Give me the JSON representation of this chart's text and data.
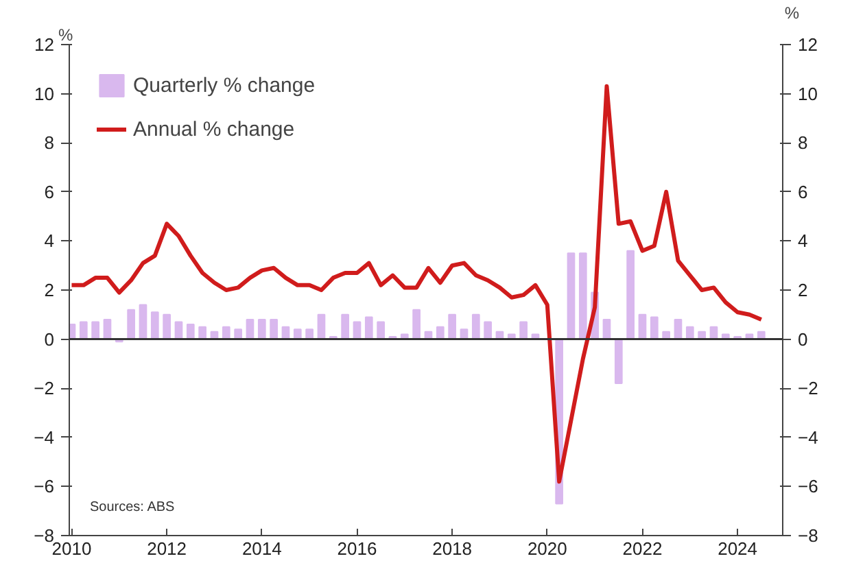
{
  "chart_data": {
    "type": "bar",
    "x": [
      2010,
      2010.25,
      2010.5,
      2010.75,
      2011,
      2011.25,
      2011.5,
      2011.75,
      2012,
      2012.25,
      2012.5,
      2012.75,
      2013,
      2013.25,
      2013.5,
      2013.75,
      2014,
      2014.25,
      2014.5,
      2014.75,
      2015,
      2015.25,
      2015.5,
      2015.75,
      2016,
      2016.25,
      2016.5,
      2016.75,
      2017,
      2017.25,
      2017.5,
      2017.75,
      2018,
      2018.25,
      2018.5,
      2018.75,
      2019,
      2019.25,
      2019.5,
      2019.75,
      2020,
      2020.25,
      2020.5,
      2020.75,
      2021,
      2021.25,
      2021.5,
      2021.75,
      2022,
      2022.25,
      2022.5,
      2022.75,
      2023,
      2023.25,
      2023.5,
      2023.75,
      2024,
      2024.25,
      2024.5
    ],
    "series": [
      {
        "name": "Quarterly % change",
        "color": "#d9b8ee",
        "values": [
          0.6,
          0.7,
          0.7,
          0.8,
          -0.1,
          1.2,
          1.4,
          1.1,
          1.0,
          0.7,
          0.6,
          0.5,
          0.3,
          0.5,
          0.4,
          0.8,
          0.8,
          0.8,
          0.5,
          0.4,
          0.4,
          1.0,
          0.1,
          1.0,
          0.7,
          0.9,
          0.7,
          0.1,
          0.2,
          1.2,
          0.3,
          0.5,
          1.0,
          0.4,
          1.0,
          0.7,
          0.3,
          0.2,
          0.7,
          0.2,
          null,
          -6.7,
          3.5,
          3.5,
          1.9,
          0.8,
          -1.8,
          3.6,
          1.0,
          0.9,
          0.3,
          0.8,
          0.5,
          0.3,
          0.5,
          0.2,
          0.1,
          0.2,
          0.3
        ]
      },
      {
        "name": "Annual % change",
        "type": "line",
        "color": "#d01c1c",
        "values": [
          2.2,
          2.2,
          2.5,
          2.5,
          1.9,
          2.4,
          3.1,
          3.4,
          4.7,
          4.2,
          3.4,
          2.7,
          2.3,
          2.0,
          2.1,
          2.5,
          2.8,
          2.9,
          2.5,
          2.2,
          2.2,
          2.0,
          2.5,
          2.7,
          2.7,
          3.1,
          2.2,
          2.6,
          2.1,
          2.1,
          2.9,
          2.3,
          3.0,
          3.1,
          2.6,
          2.4,
          2.1,
          1.7,
          1.8,
          2.2,
          1.4,
          -5.8,
          -3.3,
          -0.8,
          1.3,
          10.3,
          4.7,
          4.8,
          3.6,
          3.8,
          6.0,
          3.2,
          2.6,
          2.0,
          2.1,
          1.5,
          1.1,
          1.0,
          0.8
        ]
      }
    ],
    "xlim": [
      2009.95,
      2024.95
    ],
    "xticks": [
      2010,
      2012,
      2014,
      2016,
      2018,
      2020,
      2022,
      2024
    ],
    "ylim": [
      -8,
      12
    ],
    "yticks": [
      -8,
      -6,
      -4,
      -2,
      0,
      2,
      4,
      6,
      8,
      10,
      12
    ],
    "y2lim": [
      -8,
      12
    ],
    "y2ticks": [
      -8,
      -6,
      -4,
      -2,
      0,
      2,
      4,
      6,
      8,
      10,
      12
    ],
    "ylabel": "%",
    "y2label": "%",
    "ref_lines": [
      {
        "axis": "y",
        "value": 0,
        "color": "#333333"
      }
    ],
    "annotations": [
      "Sources: ABS"
    ],
    "legend": "top left",
    "grid": false
  }
}
